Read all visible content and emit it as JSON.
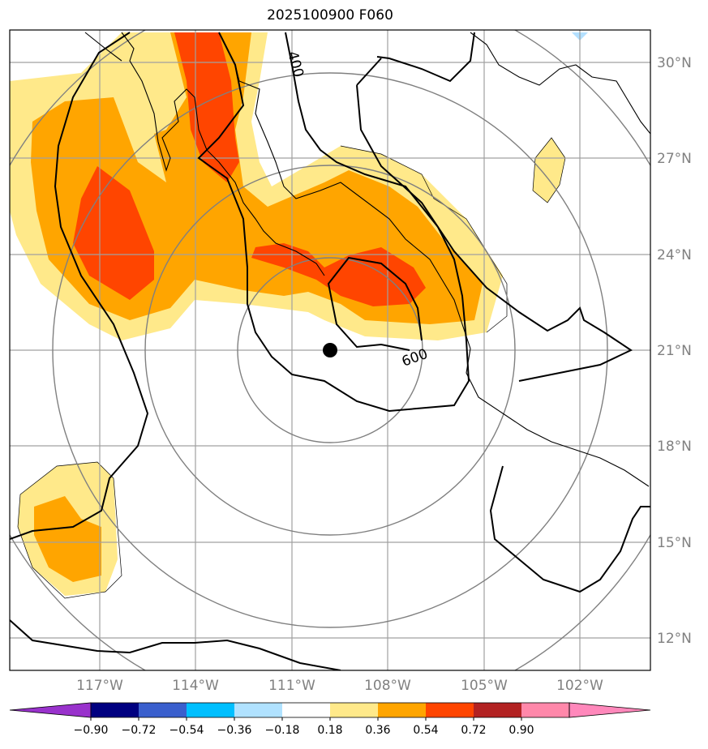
{
  "title": "2025100900 F060",
  "map": {
    "lon_labels": [
      "117°W",
      "114°W",
      "111°W",
      "108°W",
      "105°W",
      "102°W"
    ],
    "lon_values": [
      -117,
      -114,
      -111,
      -108,
      -105,
      -102
    ],
    "lat_labels": [
      "30°N",
      "27°N",
      "24°N",
      "21°N",
      "18°N",
      "15°N",
      "12°N"
    ],
    "lat_values": [
      30,
      27,
      24,
      21,
      18,
      15,
      12
    ],
    "extent": {
      "lon_min": -119.8,
      "lon_max": -99.8,
      "lat_min": 11.0,
      "lat_max": 31.0
    },
    "center": {
      "lon": -109.8,
      "lat": 21.0
    },
    "contour_labels": [
      "400",
      "600"
    ],
    "colors": {
      "shade_036": "#ffe98a",
      "shade_054": "#ffa500",
      "shade_072": "#ff4500",
      "neg_018": "#b3e0ff",
      "grid": "#808080",
      "coast": "#000000"
    }
  },
  "colorbar": {
    "tick_labels": [
      "−0.90",
      "−0.72",
      "−0.54",
      "−0.36",
      "−0.18",
      "0.18",
      "0.36",
      "0.54",
      "0.72",
      "0.90"
    ],
    "colors": [
      "#9932cc",
      "#000080",
      "#3a5fcd",
      "#00bfff",
      "#b0e2ff",
      "#ffffff",
      "#ffe98a",
      "#ffa500",
      "#ff4500",
      "#b22222",
      "#ff88aa",
      "#ff88bb"
    ]
  }
}
